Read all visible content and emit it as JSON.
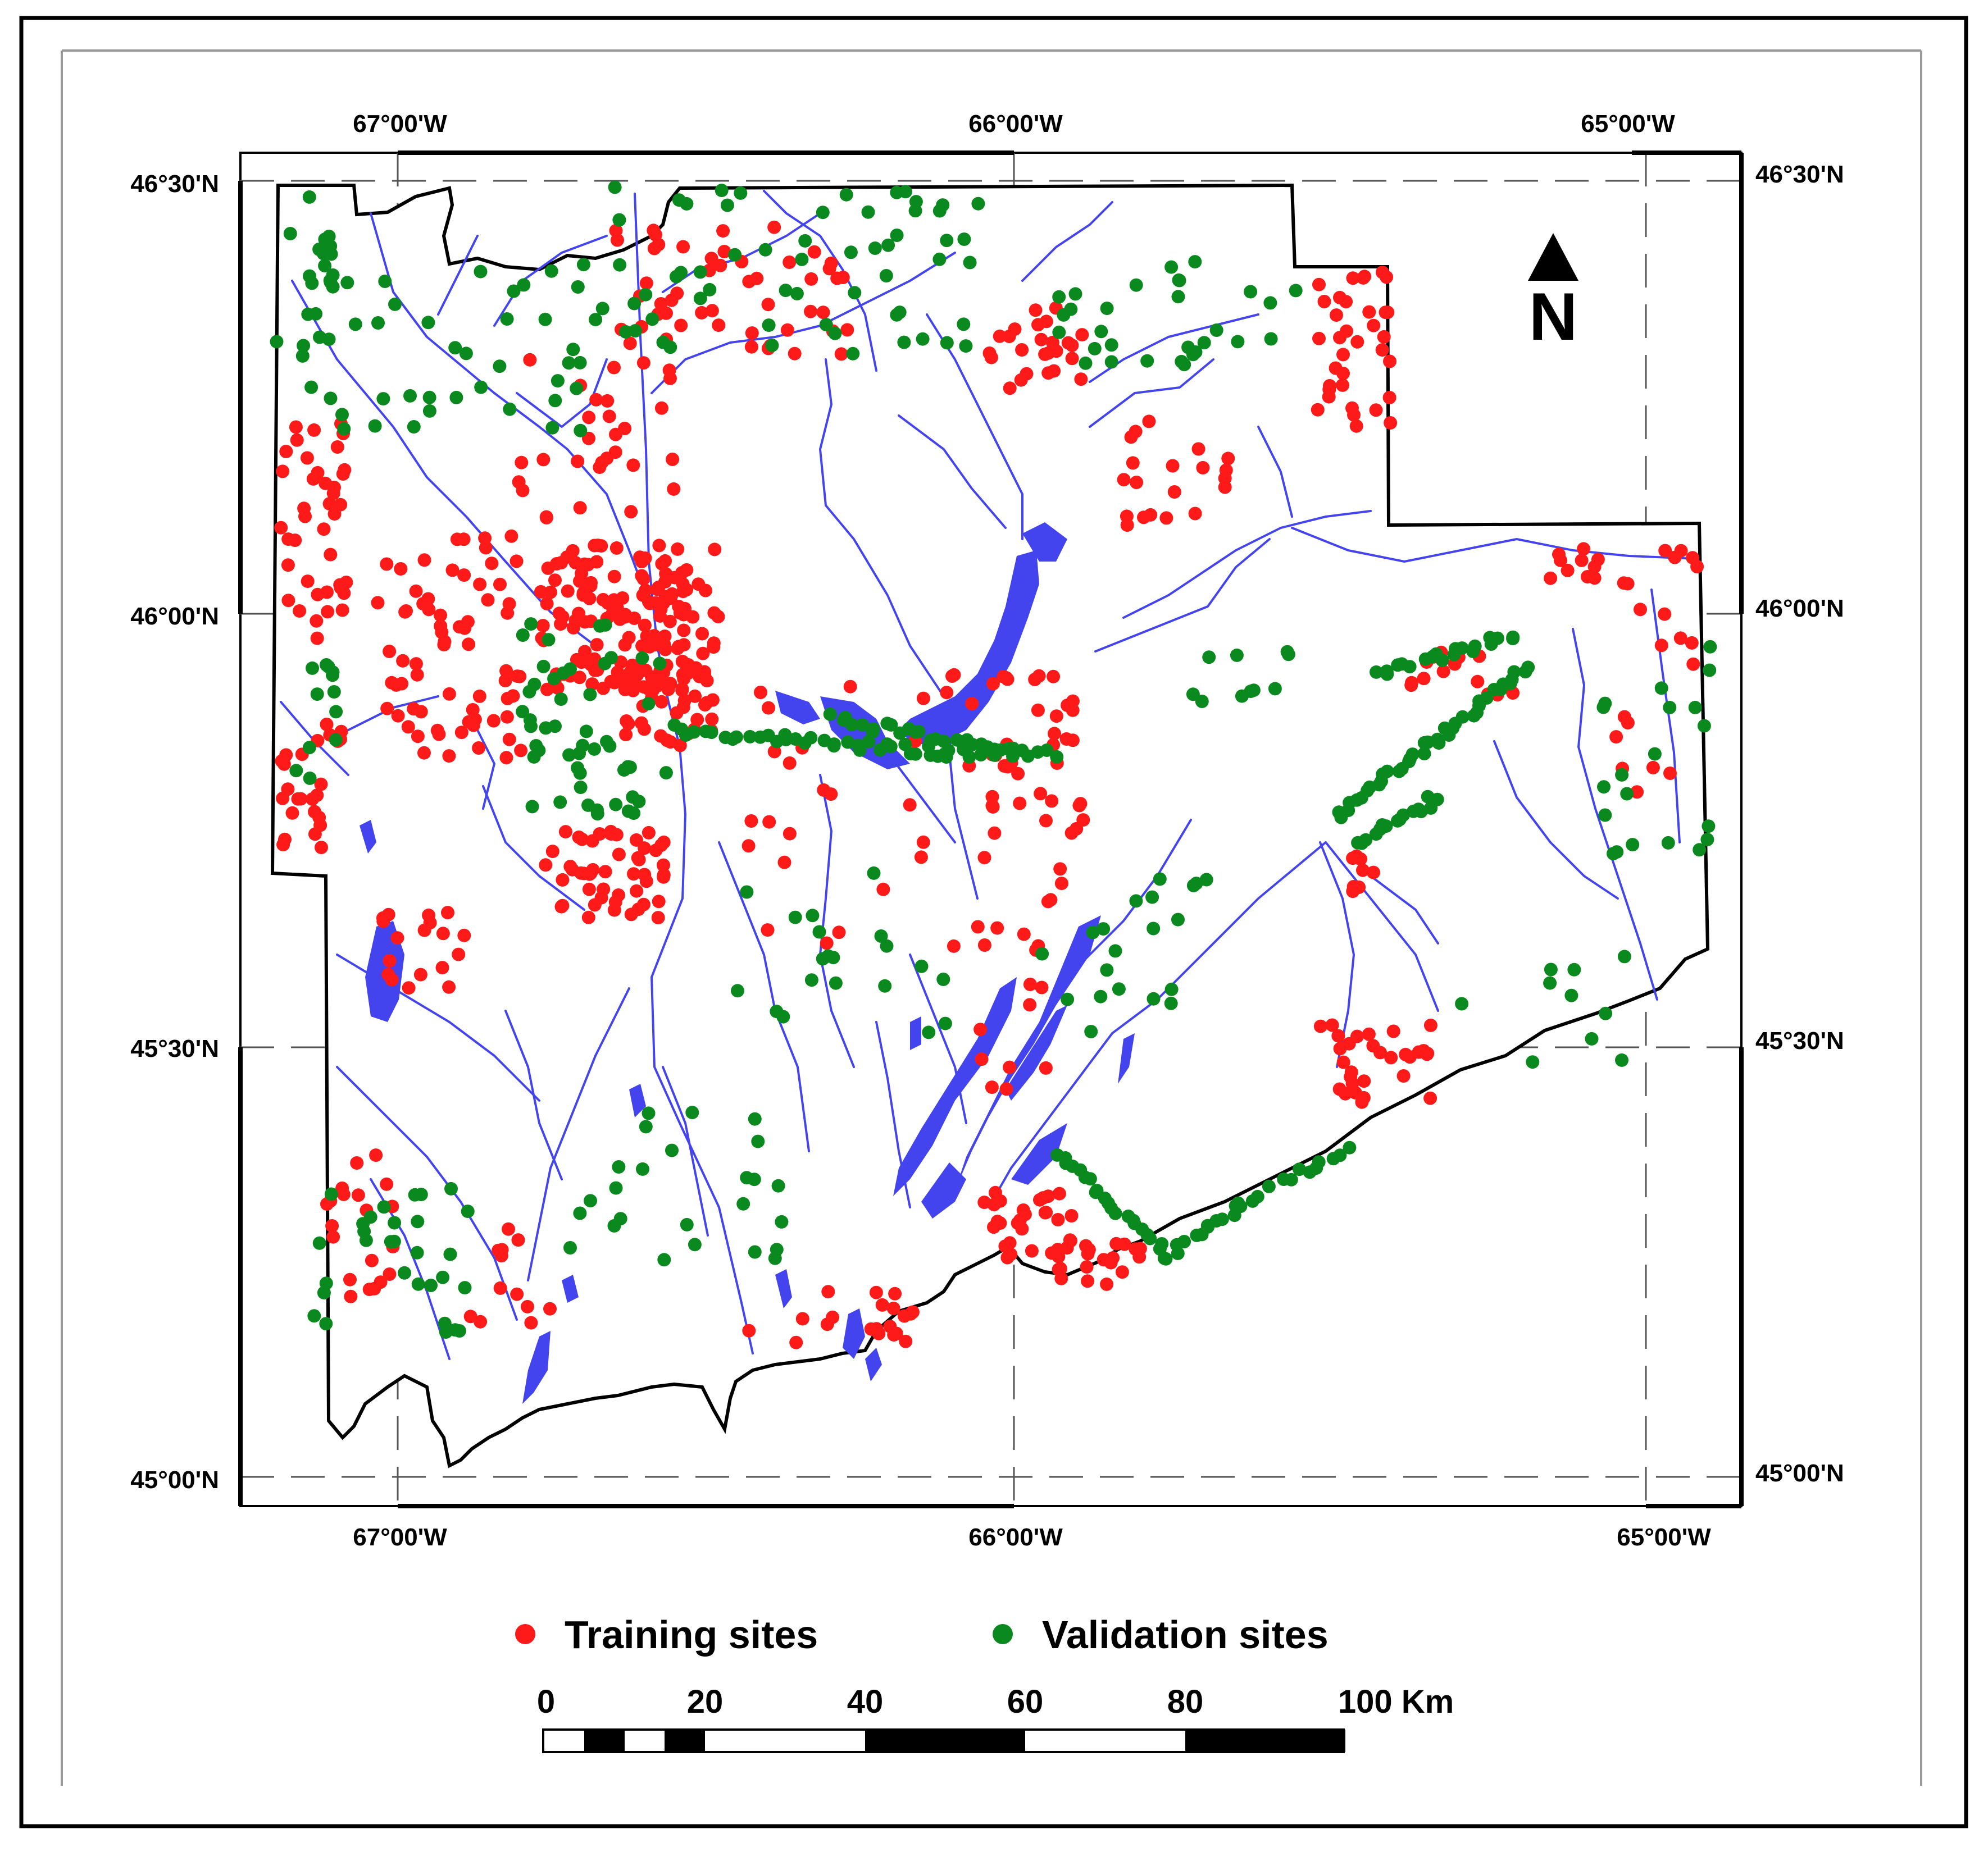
{
  "map": {
    "lon_labels_top": [
      "67°00'W",
      "66°00'W",
      "65°00'W"
    ],
    "lon_labels_bottom": [
      "67°00'W",
      "66°00'W",
      "65°00'W"
    ],
    "lat_labels_left": [
      "46°30'N",
      "46°00'N",
      "45°30'N",
      "45°00'N"
    ],
    "lat_labels_right": [
      "46°30'N",
      "46°00'N",
      "45°30'N",
      "45°00'N"
    ],
    "north_arrow_label": "N"
  },
  "legend": {
    "training_label": "Training sites",
    "validation_label": "Validation sites",
    "training_color": "#ff1a1a",
    "validation_color": "#0a8a1e"
  },
  "scale_bar": {
    "labels": [
      "0",
      "20",
      "40",
      "60",
      "80",
      "100 Km"
    ]
  },
  "colors": {
    "water": "#4444ee",
    "boundary": "#000000"
  }
}
